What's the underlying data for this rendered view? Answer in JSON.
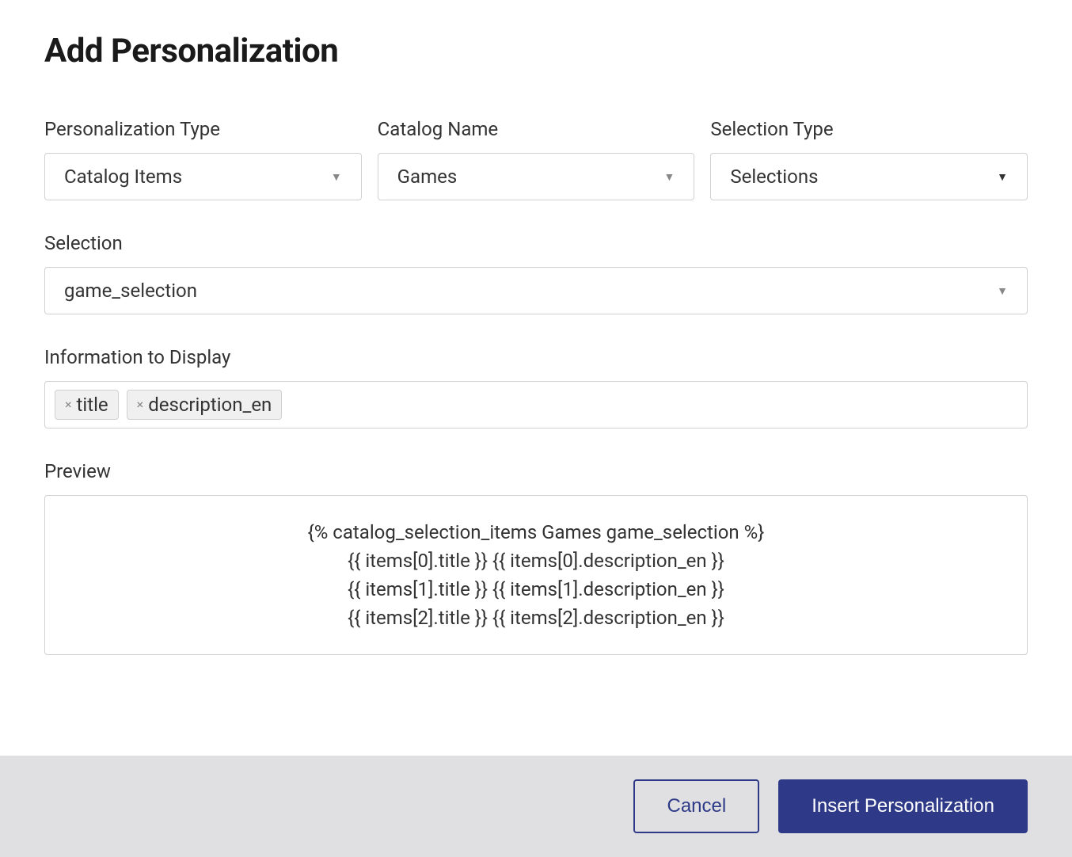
{
  "title": "Add Personalization",
  "fields": {
    "personalizationType": {
      "label": "Personalization Type",
      "value": "Catalog Items"
    },
    "catalogName": {
      "label": "Catalog Name",
      "value": "Games"
    },
    "selectionType": {
      "label": "Selection Type",
      "value": "Selections"
    },
    "selection": {
      "label": "Selection",
      "value": "game_selection"
    },
    "informationToDisplay": {
      "label": "Information to Display",
      "tags": [
        "title",
        "description_en"
      ]
    },
    "preview": {
      "label": "Preview",
      "lines": [
        "{% catalog_selection_items Games game_selection %}",
        "{{ items[0].title }} {{ items[0].description_en }}",
        "{{ items[1].title }} {{ items[1].description_en }}",
        "{{ items[2].title }} {{ items[2].description_en }}"
      ]
    }
  },
  "buttons": {
    "cancel": "Cancel",
    "insert": "Insert Personalization"
  },
  "colors": {
    "primary": "#2e3a87",
    "border": "#d0d0d0",
    "text": "#333333",
    "footerBg": "#e0e0e3",
    "tagBg": "#f0f0f0"
  }
}
